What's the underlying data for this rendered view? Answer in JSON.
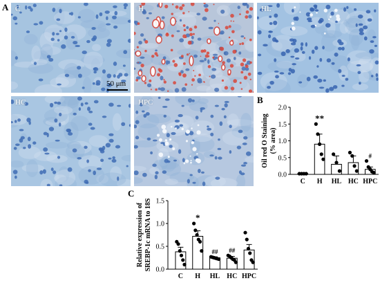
{
  "figure": {
    "panel_a_letter": "A",
    "panel_b_letter": "B",
    "panel_c_letter": "C",
    "scale_bar_label": "50 μm"
  },
  "micrographs": [
    {
      "label": "C",
      "base": "#a6c4e0",
      "cell": "#3f6fb6",
      "red": false
    },
    {
      "label": "H",
      "base": "#b8c6da",
      "cell": "#4a73b6",
      "red": true
    },
    {
      "label": "HL",
      "base": "#a2c2e2",
      "cell": "#3764b0",
      "red": false
    },
    {
      "label": "HC",
      "base": "#a9c6e2",
      "cell": "#3f6cb4",
      "red": false
    },
    {
      "label": "HPC",
      "base": "#b6c8e0",
      "cell": "#426eb5",
      "red": false
    }
  ],
  "colors": {
    "stain_red": "#d8463a",
    "bar_fill": "#ffffff",
    "dot": "#000000"
  },
  "chart_data": [
    {
      "type": "bar",
      "id": "B",
      "ylabel_line1": "Oil red O Staining",
      "ylabel_line2": "(% area)",
      "categories": [
        "C",
        "H",
        "HL",
        "HC",
        "HPC"
      ],
      "values": [
        0.02,
        0.9,
        0.3,
        0.35,
        0.15
      ],
      "errors": [
        0.01,
        0.3,
        0.25,
        0.2,
        0.07
      ],
      "points": [
        [
          0.02,
          0.02,
          0.02,
          0.02
        ],
        [
          1.5,
          1.2,
          0.9,
          0.6,
          0.45
        ],
        [
          0.6,
          0.35,
          0.1
        ],
        [
          0.65,
          0.55,
          0.25,
          0.1
        ],
        [
          0.4,
          0.22,
          0.15,
          0.08,
          0.05
        ]
      ],
      "annotations": [
        "",
        "**",
        "",
        "",
        "#"
      ],
      "ylim": [
        0.0,
        2.0
      ],
      "yticks": [
        "0.0",
        "0.5",
        "1.0",
        "1.5",
        "2.0"
      ]
    },
    {
      "type": "bar",
      "id": "C",
      "ylabel_line1": "Relative expression of",
      "ylabel_line2": "SREBP-1c mRNA to 18S",
      "categories": [
        "C",
        "H",
        "HL",
        "HC",
        "HPC"
      ],
      "values": [
        0.38,
        0.72,
        0.25,
        0.24,
        0.42
      ],
      "errors": [
        0.1,
        0.12,
        0.02,
        0.04,
        0.12
      ],
      "points": [
        [
          0.6,
          0.55,
          0.4,
          0.3,
          0.2,
          0.1
        ],
        [
          1.0,
          0.85,
          0.75,
          0.65,
          0.6,
          0.4
        ],
        [
          0.27,
          0.26,
          0.25,
          0.24,
          0.23,
          0.22
        ],
        [
          0.3,
          0.28,
          0.25,
          0.22,
          0.2,
          0.15
        ],
        [
          0.8,
          0.65,
          0.45,
          0.35,
          0.2,
          0.15
        ]
      ],
      "annotations": [
        "",
        "*",
        "##",
        "##",
        ""
      ],
      "ylim": [
        0.0,
        1.5
      ],
      "yticks": [
        "0.0",
        "0.5",
        "1.0",
        "1.5"
      ]
    }
  ]
}
